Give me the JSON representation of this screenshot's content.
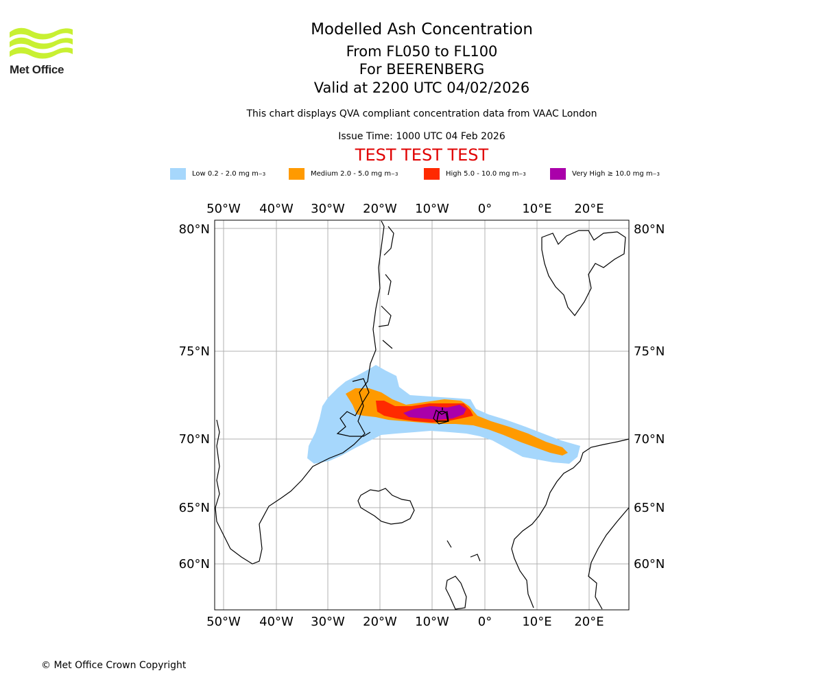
{
  "brand": {
    "name": "Met Office",
    "logo_color": "#c8f032"
  },
  "title": "Modelled Ash Concentration",
  "flight_levels": "From FL050 to FL100",
  "volcano": "For BEERENBERG",
  "valid_time": "Valid at 2200 UTC 04/02/2026",
  "description": "This chart displays QVA compliant concentration data from VAAC London",
  "issue_time": "Issue Time: 1000 UTC 04 Feb 2026",
  "test_banner": "TEST TEST TEST",
  "legend": [
    {
      "label": "Low 0.2 - 2.0 mg m",
      "unit_exp": "−3",
      "color": "#a6d7fc"
    },
    {
      "label": "Medium 2.0 - 5.0 mg m",
      "unit_exp": "−3",
      "color": "#ff9a00"
    },
    {
      "label": "High 5.0 - 10.0 mg m",
      "unit_exp": "−3",
      "color": "#ff2a00"
    },
    {
      "label": "Very High ≥ 10.0 mg m",
      "unit_exp": "−3",
      "color": "#aa00aa"
    }
  ],
  "map": {
    "longitude_ticks": [
      "50°W",
      "40°W",
      "30°W",
      "20°W",
      "10°W",
      "0°",
      "10°E",
      "20°E"
    ],
    "latitude_ticks": [
      "80°N",
      "75°N",
      "70°N",
      "65°N",
      "60°N"
    ],
    "volcano_marker": "bell-icon"
  },
  "copyright": "© Met Office Crown Copyright"
}
